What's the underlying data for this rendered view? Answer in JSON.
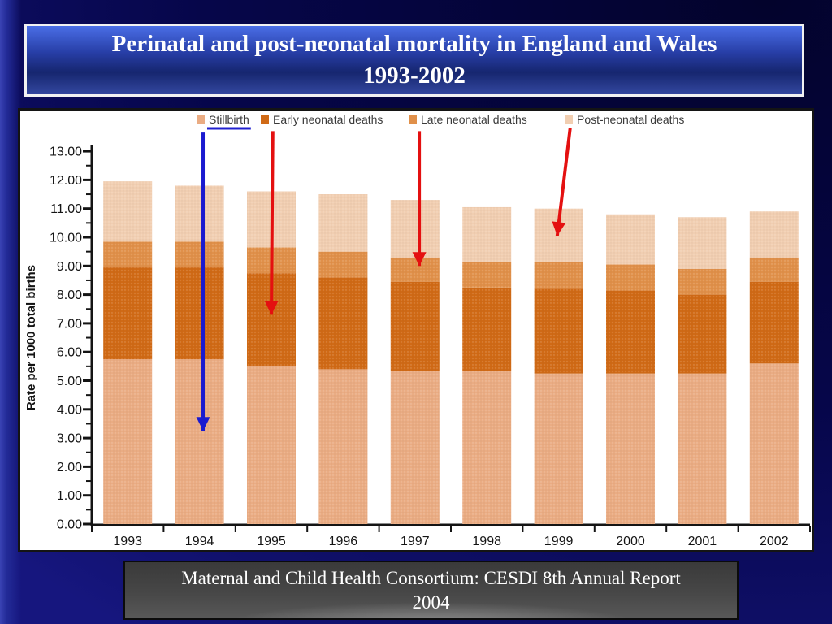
{
  "slide": {
    "title": {
      "line1": "Perinatal and post-neonatal mortality in England and Wales",
      "line2": "1993-2002"
    },
    "caption": {
      "line1": "Maternal and Child Health Consortium: CESDI 8th Annual Report",
      "line2": "2004"
    }
  },
  "colors": {
    "title_text": "#FFFFFF",
    "caption_text": "#FFFFFF",
    "arrow_blue": "#1A1AD0",
    "arrow_red": "#E41010",
    "axis": "#141414",
    "tick_text": "#141414",
    "legend_text": "#3A3A3A",
    "legend_underline": "#2020CF",
    "plot_background": "#FFFFFF"
  },
  "chart_data": {
    "type": "bar",
    "stacked": true,
    "title": "",
    "categories": [
      "1993",
      "1994",
      "1995",
      "1996",
      "1997",
      "1998",
      "1999",
      "2000",
      "2001",
      "2002"
    ],
    "series": [
      {
        "name": "Stillbirth",
        "color": "#EAAC83",
        "legend_underline": true,
        "values": [
          5.75,
          5.75,
          5.5,
          5.4,
          5.35,
          5.35,
          5.25,
          5.25,
          5.25,
          5.6
        ]
      },
      {
        "name": "Early neonatal deaths",
        "color": "#D06A16",
        "legend_underline": false,
        "values": [
          3.2,
          3.2,
          3.25,
          3.2,
          3.1,
          2.9,
          2.95,
          2.9,
          2.75,
          2.85
        ]
      },
      {
        "name": "Late neonatal deaths",
        "color": "#E0904A",
        "legend_underline": false,
        "values": [
          0.9,
          0.9,
          0.9,
          0.9,
          0.85,
          0.9,
          0.95,
          0.9,
          0.9,
          0.85
        ]
      },
      {
        "name": "Post-neonatal deaths",
        "color": "#F1CEB1",
        "legend_underline": false,
        "values": [
          2.1,
          1.95,
          1.95,
          2.0,
          2.0,
          1.9,
          1.85,
          1.75,
          1.8,
          1.6
        ]
      }
    ],
    "totals": [
      11.95,
      11.8,
      11.6,
      11.5,
      11.3,
      11.05,
      11.0,
      10.8,
      10.7,
      10.9
    ],
    "xlabel": "",
    "ylabel": "Rate per 1000 total births",
    "ylim": [
      0,
      13
    ],
    "ytick_step": 1.0,
    "ytick_minor_step": 0.5,
    "ytick_decimals": 2,
    "grid": false,
    "legend_position": "top",
    "annotations": [
      {
        "name": "stillbirth-arrow",
        "color": "#1A1AD0",
        "from": {
          "cat_x": 1.55,
          "value": 13.65
        },
        "to": {
          "cat_x": 1.55,
          "value": 3.25
        },
        "points_to": "Stillbirth segment, 1994 bar"
      },
      {
        "name": "early-neonatal-arrow",
        "color": "#E41010",
        "from": {
          "cat_x": 2.52,
          "value": 13.7
        },
        "to": {
          "cat_x": 2.5,
          "value": 7.3
        },
        "points_to": "Early neonatal segment, 1995 bar"
      },
      {
        "name": "late-neonatal-arrow",
        "color": "#E41010",
        "from": {
          "cat_x": 4.56,
          "value": 13.7
        },
        "to": {
          "cat_x": 4.56,
          "value": 9.0
        },
        "points_to": "Late neonatal segment, 1997 bar"
      },
      {
        "name": "post-neonatal-arrow",
        "color": "#E41010",
        "from": {
          "cat_x": 6.66,
          "value": 13.8
        },
        "to": {
          "cat_x": 6.48,
          "value": 10.05
        },
        "points_to": "Post-neonatal segment, 1999 bar"
      }
    ]
  }
}
